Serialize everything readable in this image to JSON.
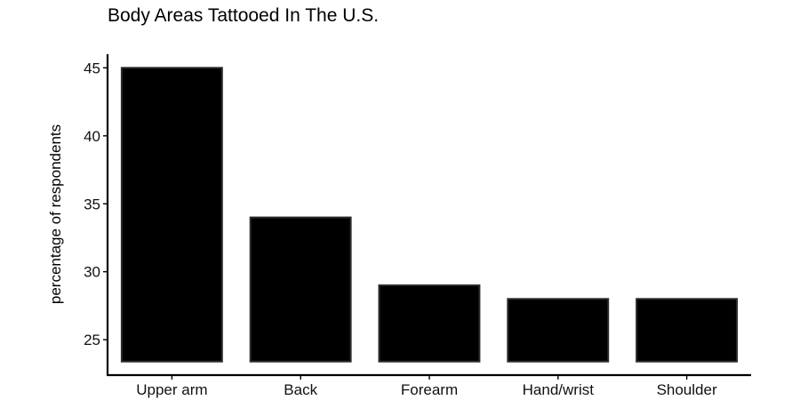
{
  "chart_data": {
    "type": "bar",
    "title": "Body Areas Tattooed In The U.S.",
    "xlabel": "",
    "ylabel": "percentage of respondents",
    "categories": [
      "Upper arm",
      "Back",
      "Forearm",
      "Hand/wrist",
      "Shoulder"
    ],
    "values": [
      45,
      34,
      29,
      28,
      28
    ],
    "ylim": [
      22.4,
      46
    ],
    "yticks": [
      25,
      30,
      35,
      40,
      45
    ],
    "baseline": 23.4,
    "bar_color": "#000000",
    "grid": false,
    "legend": "none"
  }
}
